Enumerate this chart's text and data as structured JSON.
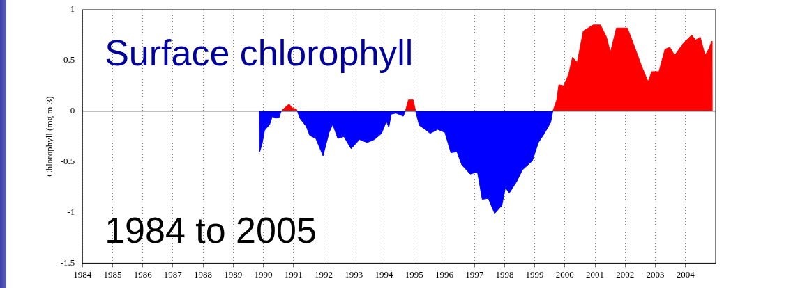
{
  "chart_data": {
    "type": "area",
    "ylabel": "Chlorophyll (mg m-3)",
    "annotations": [
      "Surface chlorophyll",
      "1984 to 2005"
    ],
    "xlim": [
      1984,
      2005
    ],
    "xticks": [
      1984,
      1985,
      1986,
      1987,
      1988,
      1989,
      1990,
      1991,
      1992,
      1993,
      1994,
      1995,
      1996,
      1997,
      1998,
      1999,
      2000,
      2001,
      2002,
      2003,
      2004
    ],
    "ylim": [
      -1.5,
      1
    ],
    "yticks": [
      -1.5,
      -1,
      -0.5,
      0,
      0.5,
      1
    ],
    "grid": "x",
    "line_style": "solid",
    "marker": "none",
    "legend": false,
    "ref_lines": [
      {
        "axis": "y",
        "value": 0,
        "color": "#000000"
      }
    ],
    "series": [
      {
        "color": "#0000ff",
        "x": [
          1989.87,
          1989.88,
          1989.96,
          1990.04,
          1990.21,
          1990.3,
          1990.41,
          1990.53,
          1990.59,
          1991.13,
          1991.21,
          1991.42,
          1991.54,
          1991.74,
          1991.98,
          1992.18,
          1992.3,
          1992.47,
          1992.67,
          1992.91,
          1993.19,
          1993.44,
          1993.68,
          1993.92,
          1994.08,
          1994.16,
          1994.24,
          1994.4,
          1994.64,
          1994.71,
          1995.05,
          1995.17,
          1995.37,
          1995.53,
          1995.78,
          1996.02,
          1996.22,
          1996.42,
          1996.58,
          1996.86,
          1997.1,
          1997.26,
          1997.46,
          1997.67,
          1997.91,
          1998.03,
          1998.15,
          1998.39,
          1998.59,
          1998.92,
          1999.12,
          1999.32,
          1999.53,
          1999.6
        ],
        "values": [
          0,
          -0.4,
          -0.32,
          -0.19,
          -0.13,
          -0.05,
          -0.07,
          -0.06,
          0,
          0,
          -0.07,
          -0.15,
          -0.24,
          -0.27,
          -0.44,
          -0.21,
          -0.13,
          -0.27,
          -0.25,
          -0.37,
          -0.28,
          -0.31,
          -0.28,
          -0.22,
          -0.1,
          -0.16,
          -0.03,
          -0.02,
          -0.05,
          0,
          0,
          -0.14,
          -0.18,
          -0.22,
          -0.18,
          -0.21,
          -0.41,
          -0.4,
          -0.53,
          -0.62,
          -0.6,
          -0.87,
          -0.86,
          -1.01,
          -0.93,
          -0.75,
          -0.81,
          -0.7,
          -0.58,
          -0.49,
          -0.31,
          -0.22,
          -0.11,
          0
        ]
      },
      {
        "color": "#ff0000",
        "x": [
          1990.59,
          1990.85,
          1990.97,
          1991.09,
          1991.13,
          1993,
          1994.71,
          1994.81,
          1994.97,
          1995.05,
          1997,
          1999.6,
          1999.73,
          1999.8,
          1999.97,
          2000.13,
          2000.25,
          2000.41,
          2000.61,
          2000.94,
          2001.18,
          2001.38,
          2001.51,
          2001.71,
          2002.07,
          2002.19,
          2002.39,
          2002.55,
          2002.76,
          2002.88,
          2003.12,
          2003.32,
          2003.48,
          2003.64,
          2003.93,
          2004.21,
          2004.33,
          2004.49,
          2004.65,
          2004.77,
          2004.87,
          2004.88
        ],
        "values": [
          0,
          0.07,
          0.03,
          0.02,
          0,
          null,
          0,
          0.11,
          0.11,
          0,
          null,
          0,
          0.11,
          0.26,
          0.25,
          0.37,
          0.53,
          0.48,
          0.79,
          0.85,
          0.85,
          0.73,
          0.58,
          0.82,
          0.82,
          0.73,
          0.57,
          0.44,
          0.29,
          0.39,
          0.39,
          0.61,
          0.63,
          0.55,
          0.67,
          0.75,
          0.7,
          0.73,
          0.55,
          0.61,
          0.69,
          0
        ]
      }
    ]
  }
}
